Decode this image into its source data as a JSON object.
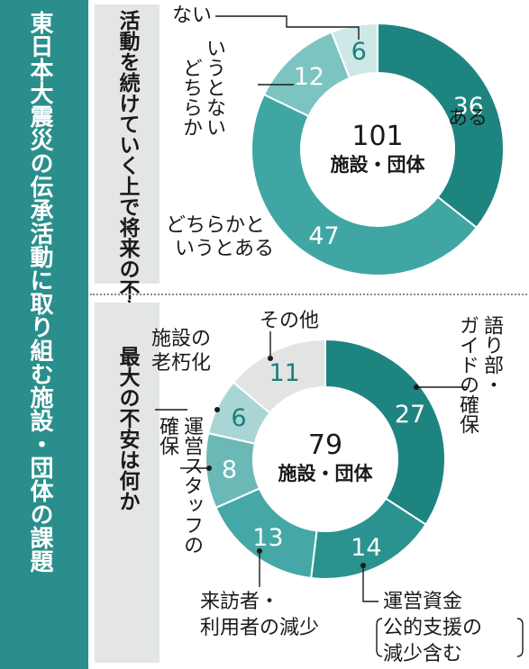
{
  "title": "東日本大震災の伝承活動に取り組む施設・団体の課題",
  "chart_data": [
    {
      "type": "pie",
      "question": "活動を続けていく上で将来の不安はあるか",
      "center_value": "101",
      "center_label": "施設・団体",
      "slices": [
        {
          "label": "ある",
          "value": 36,
          "color": "#1e8480",
          "text_color": "#ffffff"
        },
        {
          "label": "どちらかというとある",
          "value": 47,
          "color": "#3fa6a4",
          "text_color": "#ffffff"
        },
        {
          "label": "どちらかというとない",
          "value": 12,
          "color": "#7cc4c2",
          "text_color": "#ffffff"
        },
        {
          "label": "ない",
          "value": 6,
          "color": "#cde8e7",
          "text_color": "#1a7f7c"
        }
      ]
    },
    {
      "type": "pie",
      "question": "最大の不安は何か",
      "center_value": "79",
      "center_label": "施設・団体",
      "slices": [
        {
          "label": "語り部・ガイドの確保",
          "value": 27,
          "color": "#1e8480",
          "text_color": "#ffffff"
        },
        {
          "label": "運営資金（公的支援の減少含む）",
          "value": 14,
          "color": "#2a928f",
          "text_color": "#ffffff"
        },
        {
          "label": "来訪者・利用者の減少",
          "value": 13,
          "color": "#45a8a6",
          "text_color": "#ffffff"
        },
        {
          "label": "運営スタッフの確保",
          "value": 8,
          "color": "#6ab9b7",
          "text_color": "#ffffff"
        },
        {
          "label": "施設の老朽化",
          "value": 6,
          "color": "#a9d6d5",
          "text_color": "#1a7f7c"
        },
        {
          "label": "その他",
          "value": 11,
          "color": "#e2e4e4",
          "text_color": "#1a7f7c"
        }
      ]
    }
  ]
}
